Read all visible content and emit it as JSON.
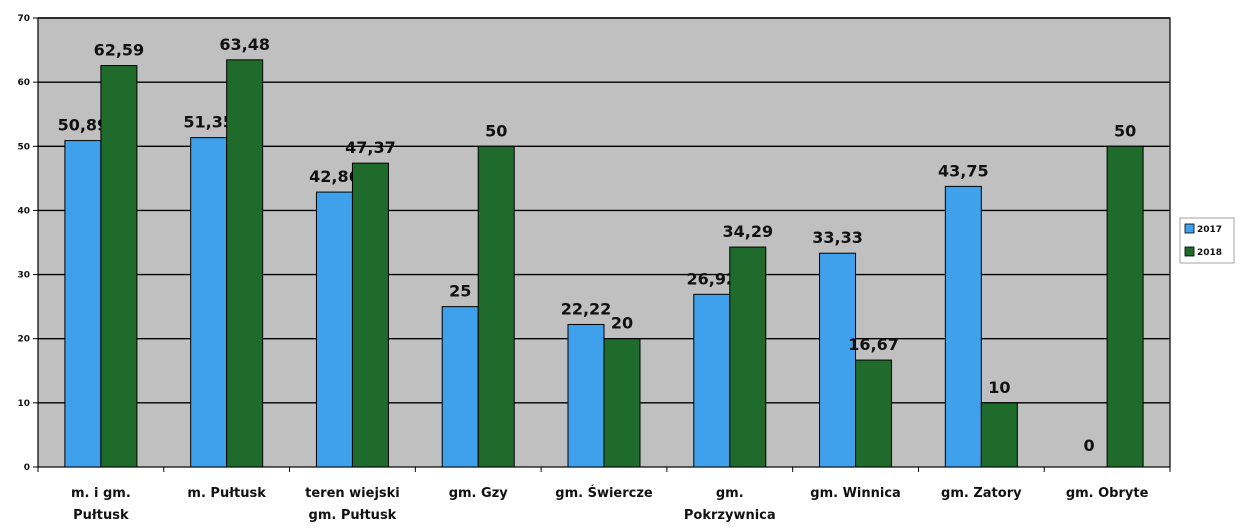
{
  "chart_data": {
    "type": "bar",
    "categories": [
      [
        "m. i gm.",
        "Pułtusk"
      ],
      [
        "m. Pułtusk"
      ],
      [
        "teren wiejski",
        "gm. Pułtusk"
      ],
      [
        "gm. Gzy"
      ],
      [
        "gm. Świercze"
      ],
      [
        "gm.",
        "Pokrzywnica"
      ],
      [
        "gm. Winnica"
      ],
      [
        "gm. Zatory"
      ],
      [
        "gm. Obryte"
      ]
    ],
    "series": [
      {
        "name": "2017",
        "color": "#3fa0ec",
        "values": [
          50.89,
          51.35,
          42.86,
          25,
          22.22,
          26.92,
          33.33,
          43.75,
          0
        ],
        "labels": [
          "50,89",
          "51,35",
          "42,86",
          "25",
          "22,22",
          "26,92",
          "33,33",
          "43,75",
          "0"
        ]
      },
      {
        "name": "2018",
        "color": "#1e6b2b",
        "values": [
          62.59,
          63.48,
          47.37,
          50,
          20,
          34.29,
          16.67,
          10,
          50
        ],
        "labels": [
          "62,59",
          "63,48",
          "47,37",
          "50",
          "20",
          "34,29",
          "16,67",
          "10",
          "50"
        ]
      }
    ],
    "ylim": [
      0,
      70
    ],
    "yticks": [
      "0",
      "10",
      "20",
      "30",
      "40",
      "50",
      "60",
      "70"
    ],
    "grid": true,
    "plot_background": "#c0c0c0",
    "legend_position": "right"
  }
}
